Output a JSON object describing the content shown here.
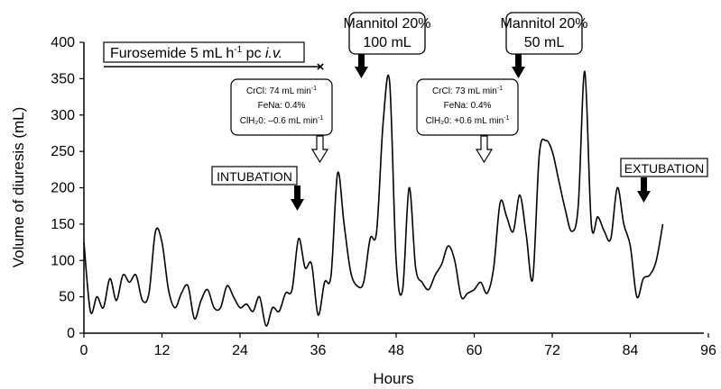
{
  "chart_data": {
    "type": "line",
    "xlabel": "Hours",
    "ylabel": "Volume of diuresis (mL)",
    "xlim": [
      0,
      96
    ],
    "ylim": [
      0,
      400
    ],
    "x_ticks": [
      "0",
      "12",
      "24",
      "36",
      "48",
      "60",
      "72",
      "84",
      "96"
    ],
    "y_ticks": [
      "0",
      "50",
      "100",
      "150",
      "200",
      "250",
      "300",
      "350",
      "400"
    ],
    "grid": false,
    "series": [
      {
        "x": [
          0,
          1,
          2,
          3,
          4,
          5,
          6,
          7,
          8,
          9,
          10,
          11,
          12,
          13,
          14,
          15,
          16,
          17,
          18,
          19,
          20,
          21,
          22,
          23,
          24,
          25,
          26,
          27,
          28,
          29,
          30,
          31,
          32,
          33,
          34,
          35,
          36,
          37,
          38,
          39,
          40,
          41,
          42,
          43,
          44,
          45,
          46,
          47,
          48,
          49,
          50,
          51,
          52,
          53,
          54,
          55,
          56,
          57,
          58,
          59,
          60,
          61,
          62,
          63,
          64,
          65,
          66,
          67,
          68,
          69,
          70,
          71,
          72,
          73,
          74,
          75,
          76,
          77,
          78,
          79,
          80,
          81,
          82,
          83,
          84,
          85,
          86,
          87,
          88,
          89
        ],
        "values": [
          125,
          30,
          50,
          35,
          75,
          45,
          80,
          70,
          80,
          45,
          55,
          140,
          125,
          60,
          35,
          55,
          65,
          20,
          45,
          60,
          35,
          35,
          65,
          50,
          35,
          40,
          30,
          50,
          10,
          35,
          30,
          55,
          60,
          130,
          90,
          95,
          25,
          70,
          80,
          220,
          150,
          85,
          65,
          70,
          130,
          140,
          290,
          345,
          100,
          60,
          200,
          90,
          70,
          60,
          80,
          95,
          120,
          100,
          50,
          55,
          60,
          70,
          55,
          90,
          180,
          160,
          140,
          190,
          135,
          75,
          245,
          265,
          250,
          210,
          170,
          140,
          175,
          360,
          150,
          160,
          140,
          130,
          200,
          150,
          120,
          50,
          75,
          80,
          100,
          150
        ]
      }
    ],
    "annotations": {
      "furosemide": "Furosemide 5 mL h",
      "furosemide_sup": "-1",
      "furosemide_pc": " pc ",
      "furosemide_route": "i.v.",
      "furosemide_end_mark": "×",
      "mannitol1_line1": "Mannitol 20%",
      "mannitol1_line2": "100 mL",
      "mannitol2_line1": "Mannitol 20%",
      "mannitol2_line2": "50 mL",
      "intubation": "INTUBATION",
      "extubation": "EXTUBATION",
      "box1_crcl": "CrCl: 74 mL min",
      "box1_fena": "FeNa: 0.4%",
      "box1_clh2o": "ClH₂0: –0.6 mL min",
      "box2_crcl": "CrCl: 73 mL min",
      "box2_fena": "FeNa: 0.4%",
      "box2_clh2o": "ClH₂0: +0.6 mL min",
      "unit_sup": "-1"
    }
  }
}
